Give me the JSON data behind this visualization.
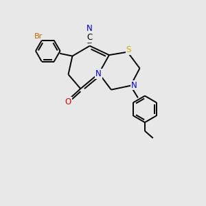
{
  "bg": "#e8e8e8",
  "bond_lw": 1.4,
  "colors": {
    "bond": "#000000",
    "S": "#ccaa00",
    "N": "#0000cc",
    "O": "#dd0000",
    "Br": "#bb6600",
    "C": "#000000"
  },
  "fs": 8.5,
  "fs_br": 8.0
}
